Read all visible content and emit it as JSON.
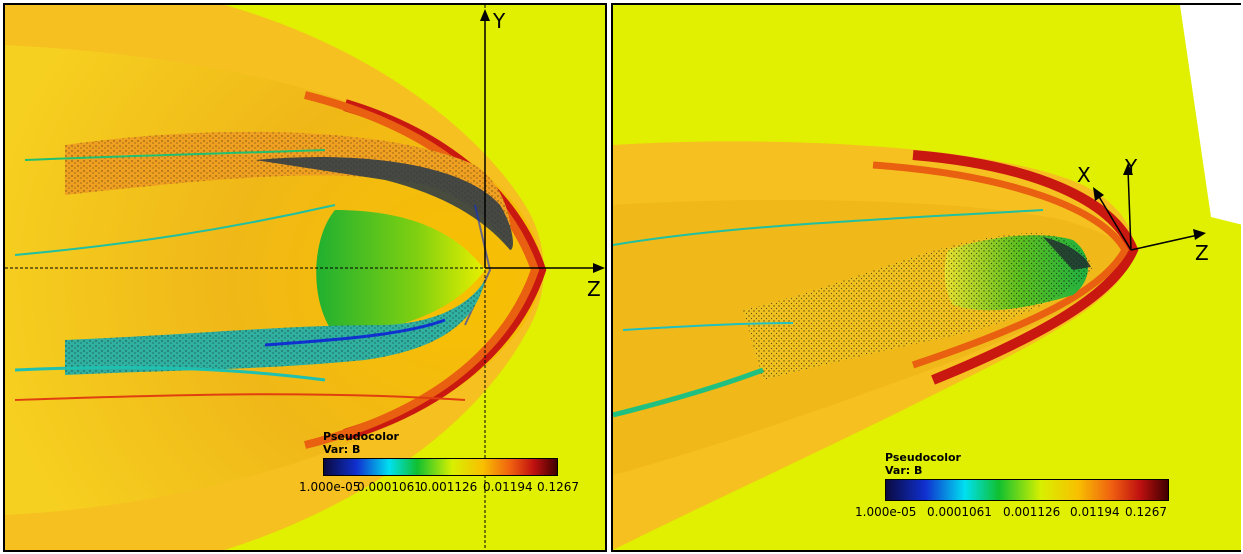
{
  "left_view": {
    "axes": {
      "y_label": "Y",
      "z_label": "Z"
    },
    "legend": {
      "title": "Pseudocolor",
      "var": "Var: B",
      "ticks": [
        "1.000e-05",
        "0.0001061",
        "0.001126",
        "0.01194",
        "0.1267"
      ]
    }
  },
  "right_view": {
    "axes": {
      "x_label": "X",
      "y_label": "Y",
      "z_label": "Z"
    },
    "legend": {
      "title": "Pseudocolor",
      "var": "Var: B",
      "ticks": [
        "1.000e-05",
        "0.0001061",
        "0.001126",
        "0.01194",
        "0.1267"
      ]
    }
  },
  "colormap": [
    "#0a0a40",
    "#1030d0",
    "#00e0f0",
    "#10c030",
    "#d8f000",
    "#f8c000",
    "#f06010",
    "#c01010",
    "#400000"
  ]
}
